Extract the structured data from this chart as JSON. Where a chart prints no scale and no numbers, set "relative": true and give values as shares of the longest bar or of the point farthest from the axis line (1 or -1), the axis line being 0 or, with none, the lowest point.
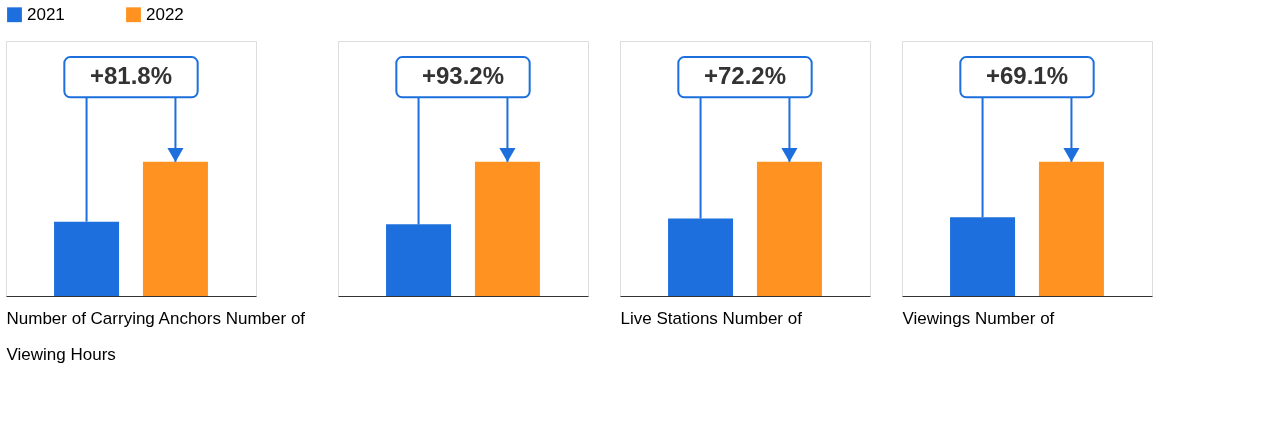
{
  "chart_data": [
    {
      "type": "bar",
      "relative": true,
      "categories": [
        null
      ],
      "legend": "top left",
      "xlabel": "Number of Carrying Anchors Number of\nViewing Hours",
      "annotations": [
        "+81.8%"
      ],
      "series": [
        {
          "name": "2021",
          "color": "#1c6fdc",
          "values": [
            0.554
          ]
        },
        {
          "name": "2022",
          "color": "#ff9220",
          "values": [
            1
          ]
        }
      ]
    },
    {
      "type": "bar",
      "relative": true,
      "categories": [
        null
      ],
      "annotations": [
        "+93.2%"
      ],
      "series": [
        {
          "name": "2021",
          "color": "#1c6fdc",
          "values": [
            0.534
          ]
        },
        {
          "name": "2022",
          "color": "#ff9220",
          "values": [
            1
          ]
        }
      ]
    },
    {
      "type": "bar",
      "relative": true,
      "categories": [
        null
      ],
      "xlabel": "Live Stations Number of",
      "annotations": [
        "+72.2%"
      ],
      "series": [
        {
          "name": "2021",
          "color": "#1c6fdc",
          "values": [
            0.577
          ]
        },
        {
          "name": "2022",
          "color": "#ff9220",
          "values": [
            1
          ]
        }
      ]
    },
    {
      "type": "bar",
      "relative": true,
      "categories": [
        null
      ],
      "xlabel": "Viewings Number of",
      "annotations": [
        "+69.1%"
      ],
      "series": [
        {
          "name": "2021",
          "color": "#1c6fdc",
          "values": [
            0.587
          ]
        },
        {
          "name": "2022",
          "color": "#ff9220",
          "values": [
            1
          ]
        }
      ]
    }
  ]
}
